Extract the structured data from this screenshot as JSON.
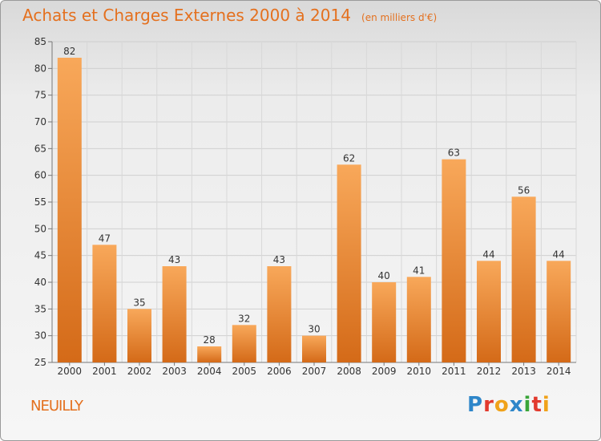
{
  "header": {
    "title": "Achats et Charges Externes 2000 à 2014",
    "subtitle": "(en milliers d'€)"
  },
  "footer": {
    "commune": "NEUILLY",
    "logo": {
      "letters": [
        "P",
        "r",
        "o",
        "x",
        "i",
        "t",
        "i"
      ],
      "colors": [
        "#2e86c9",
        "#e23a2e",
        "#f0a21a",
        "#2e86c9",
        "#3aa539",
        "#e23a2e",
        "#f0a21a"
      ]
    }
  },
  "colors": {
    "accent": "#e4701e",
    "bar_light": "#f8a85a",
    "bar_dark": "#d46a18"
  },
  "chart_data": {
    "type": "bar",
    "categories": [
      "2000",
      "2001",
      "2002",
      "2003",
      "2004",
      "2005",
      "2006",
      "2007",
      "2008",
      "2009",
      "2010",
      "2011",
      "2012",
      "2013",
      "2014"
    ],
    "values": [
      82,
      47,
      35,
      43,
      28,
      32,
      43,
      30,
      62,
      40,
      41,
      63,
      44,
      56,
      44
    ],
    "ylim": [
      25,
      85
    ],
    "yticks": [
      25,
      30,
      35,
      40,
      45,
      50,
      55,
      60,
      65,
      70,
      75,
      80,
      85
    ],
    "grid": true,
    "title": "Achats et Charges Externes 2000 à 2014",
    "ylabel": "",
    "xlabel": ""
  }
}
